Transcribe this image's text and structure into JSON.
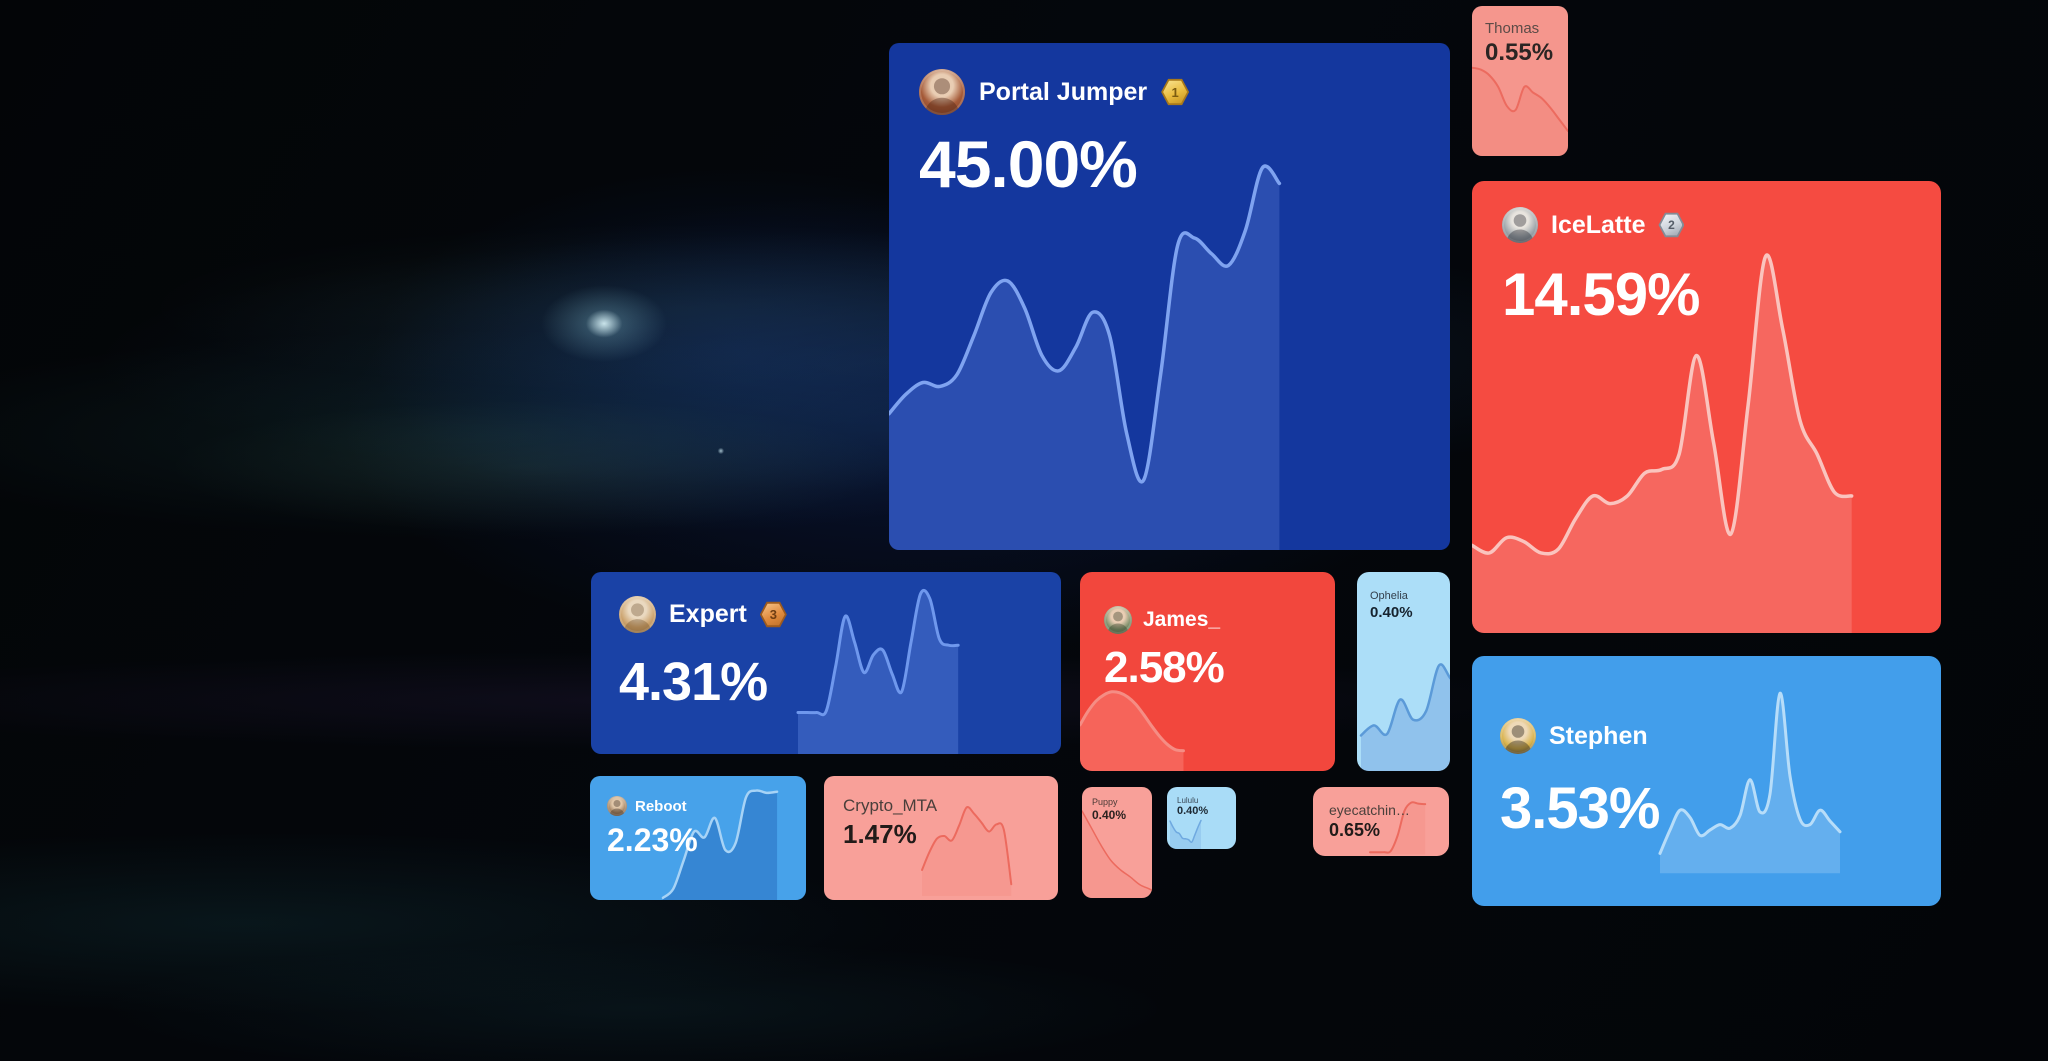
{
  "badges": {
    "gold": "#E9BC3F",
    "silver": "#CDD3DB",
    "bronze": "#E08B3E"
  },
  "cards": [
    {
      "id": "portal",
      "name": "Portal Jumper",
      "rank": "1",
      "value": "45.00%",
      "bg": "#14379E",
      "line": "#7FA3F0",
      "fill": "rgba(127,163,240,0.22)",
      "spark": [
        0.35,
        0.4,
        0.43,
        0.42,
        0.45,
        0.55,
        0.66,
        0.69,
        0.62,
        0.5,
        0.46,
        0.52,
        0.61,
        0.55,
        0.3,
        0.18,
        0.45,
        0.78,
        0.8,
        0.76,
        0.73,
        0.82,
        0.98,
        0.94
      ]
    },
    {
      "id": "thomas",
      "name": "Thomas",
      "value": "0.55%",
      "bg": "#F5968D",
      "line": "#EC6B5F",
      "fill": "rgba(236,107,95,0.20)",
      "spark": [
        0.92,
        0.9,
        0.84,
        0.72,
        0.52,
        0.48,
        0.72,
        0.66,
        0.6,
        0.5,
        0.38,
        0.26
      ]
    },
    {
      "id": "icelatte",
      "name": "IceLatte",
      "rank": "2",
      "value": "14.59%",
      "bg": "#F54B41",
      "line": "#FAC4BE",
      "fill": "rgba(255,255,255,0.16)",
      "spark": [
        0.23,
        0.21,
        0.25,
        0.24,
        0.21,
        0.22,
        0.3,
        0.36,
        0.34,
        0.36,
        0.42,
        0.43,
        0.47,
        0.73,
        0.5,
        0.26,
        0.6,
        0.99,
        0.8,
        0.56,
        0.47,
        0.37,
        0.36
      ]
    },
    {
      "id": "expert",
      "name": "Expert",
      "rank": "3",
      "value": "4.31%",
      "bg": "#1A42A6",
      "line": "#6F98ED",
      "fill": "rgba(111,152,237,0.30)",
      "spark": [
        0.26,
        0.26,
        0.26,
        0.27,
        0.55,
        0.86,
        0.7,
        0.51,
        0.62,
        0.65,
        0.5,
        0.39,
        0.7,
        1.0,
        0.97,
        0.72,
        0.68,
        0.68
      ]
    },
    {
      "id": "james",
      "name": "James_",
      "value": "2.58%",
      "bg": "#F2473D",
      "line": "#F58D84",
      "fill": "rgba(255,170,160,0.30)",
      "spark": [
        0.45,
        0.58,
        0.68,
        0.74,
        0.77,
        0.76,
        0.72,
        0.65,
        0.55,
        0.44,
        0.34,
        0.26,
        0.21,
        0.2
      ]
    },
    {
      "id": "ophelia",
      "name": "Ophelia",
      "value": "0.40%",
      "bg": "#ACDEF8",
      "line": "#5B9AD8",
      "fill": "rgba(111,160,222,0.45)",
      "spark": [
        0.25,
        0.32,
        0.26,
        0.5,
        0.36,
        0.42,
        0.74,
        0.64,
        0.7,
        1.0,
        0.7,
        0.78
      ]
    },
    {
      "id": "reboot",
      "name": "Reboot",
      "value": "2.23%",
      "bg": "#47A2EA",
      "line": "#A7D3F6",
      "fill": "rgba(18,70,160,0.30)",
      "spark": [
        0.02,
        0.1,
        0.35,
        0.6,
        0.55,
        0.72,
        0.44,
        0.5,
        0.9,
        0.96,
        0.94,
        0.95
      ]
    },
    {
      "id": "crypto",
      "name": "Crypto_MTA",
      "value": "1.47%",
      "bg": "#F8A099",
      "line": "#EC6A5E",
      "fill": "rgba(236,106,94,0.14)",
      "spark": [
        0.25,
        0.45,
        0.6,
        0.63,
        0.58,
        0.75,
        0.95,
        0.88,
        0.78,
        0.68,
        0.76,
        0.7,
        0.09
      ]
    },
    {
      "id": "puppy",
      "name": "Puppy",
      "value": "0.40%",
      "bg": "#F8A099",
      "line": "#EC6A5E",
      "fill": "rgba(236,106,94,0.16)",
      "spark": [
        1.0,
        0.8,
        0.6,
        0.43,
        0.32,
        0.24,
        0.15,
        0.1,
        0.05,
        0.01
      ]
    },
    {
      "id": "lululu",
      "name": "Lululu",
      "value": "0.40%",
      "bg": "#A9DCF7",
      "line": "#6FA9E0",
      "fill": "rgba(111,169,224,0.30)",
      "spark": [
        0.9,
        0.7,
        0.55,
        0.5,
        0.35,
        0.33,
        0.3,
        0.22,
        0.45,
        0.7,
        0.92
      ]
    },
    {
      "id": "eyecatching",
      "name": "eyecatchin…",
      "value": "0.65%",
      "bg": "#F8A099",
      "line": "#EC6A5E",
      "fill": "rgba(236,106,94,0.14)",
      "spark": [
        0.0,
        0.0,
        0.0,
        0.02,
        0.3,
        0.75,
        0.9,
        0.88,
        0.87
      ]
    },
    {
      "id": "stephen",
      "name": "Stephen",
      "value": "3.53%",
      "bg": "#429EEB",
      "line": "#B7DDF9",
      "fill": "rgba(255,255,255,0.18)",
      "spark": [
        0.07,
        0.2,
        0.31,
        0.27,
        0.17,
        0.2,
        0.23,
        0.21,
        0.28,
        0.48,
        0.3,
        0.4,
        0.96,
        0.5,
        0.26,
        0.23,
        0.31,
        0.25,
        0.19
      ]
    }
  ]
}
